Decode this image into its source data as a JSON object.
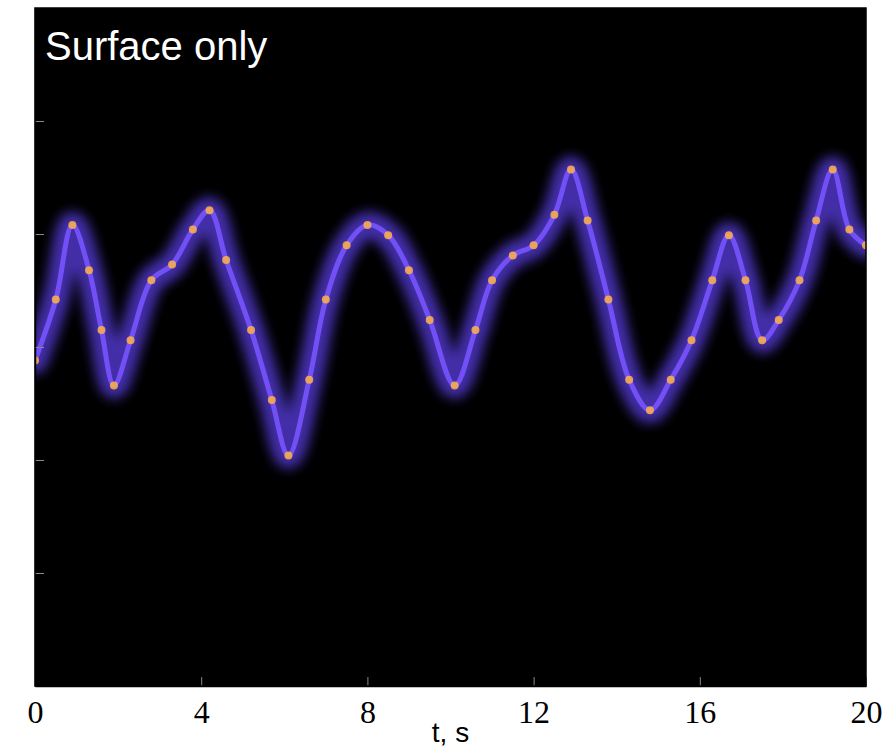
{
  "chart_data": {
    "type": "line",
    "title": "Surface only",
    "x_label": "t, s",
    "x": [
      0,
      0.5,
      0.9,
      1.3,
      1.6,
      1.9,
      2.3,
      2.8,
      3.3,
      3.8,
      4.2,
      4.6,
      5.2,
      5.7,
      6.1,
      6.6,
      7.0,
      7.5,
      8.0,
      8.5,
      9.0,
      9.5,
      10.1,
      10.6,
      11.0,
      11.5,
      12.0,
      12.5,
      12.9,
      13.3,
      13.8,
      14.3,
      14.8,
      15.3,
      15.8,
      16.3,
      16.7,
      17.1,
      17.5,
      17.9,
      18.4,
      18.8,
      19.2,
      19.6,
      20.0
    ],
    "series": [
      {
        "color": "#5a3fe0",
        "values": [
          2.88,
          3.42,
          4.08,
          3.68,
          3.15,
          2.66,
          3.06,
          3.59,
          3.73,
          4.04,
          4.21,
          3.77,
          3.15,
          2.53,
          2.04,
          2.71,
          3.42,
          3.9,
          4.08,
          3.99,
          3.68,
          3.24,
          2.66,
          3.15,
          3.59,
          3.81,
          3.9,
          4.17,
          4.57,
          4.12,
          3.42,
          2.71,
          2.44,
          2.71,
          3.06,
          3.59,
          3.99,
          3.59,
          3.06,
          3.24,
          3.59,
          4.12,
          4.57,
          4.04,
          3.9
        ]
      }
    ],
    "xlim": [
      0,
      20
    ],
    "xticks": [
      0,
      4,
      8,
      12,
      16,
      20
    ],
    "ylim": [
      0,
      6
    ],
    "yticks": [
      1,
      2,
      3,
      4,
      5
    ],
    "tick_labels": "x"
  }
}
